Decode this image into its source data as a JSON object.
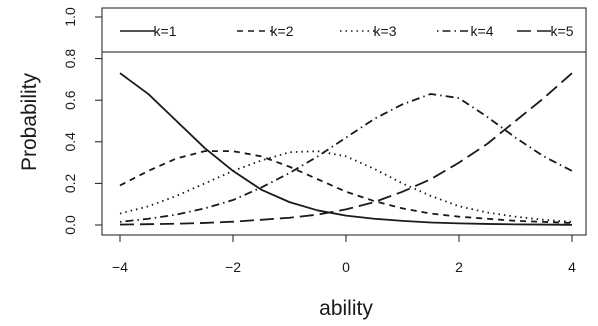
{
  "chart_data": {
    "type": "line",
    "title": "",
    "xlabel": "ability",
    "ylabel": "Probability",
    "xlim": [
      -4,
      4
    ],
    "ylim": [
      0,
      1
    ],
    "x_ticks": [
      -4,
      -2,
      0,
      2,
      4
    ],
    "x_tick_labels": [
      "−4",
      "−2",
      "0",
      "2",
      "4"
    ],
    "y_ticks": [
      0,
      0.2,
      0.4,
      0.6,
      0.8,
      1.0
    ],
    "y_tick_labels": [
      "0.0",
      "0.2",
      "0.4",
      "0.6",
      "0.8",
      "1.0"
    ],
    "grid": false,
    "legend_position": "top",
    "line_color": "#1a1a1a",
    "x": [
      -4,
      -3.5,
      -3,
      -2.5,
      -2,
      -1.5,
      -1,
      -0.5,
      0,
      0.5,
      1,
      1.5,
      2,
      2.5,
      3,
      3.5,
      4
    ],
    "series": [
      {
        "name": "k=1",
        "dash": "solid",
        "values": [
          0.73,
          0.63,
          0.5,
          0.37,
          0.26,
          0.17,
          0.11,
          0.07,
          0.045,
          0.03,
          0.02,
          0.012,
          0.008,
          0.005,
          0.003,
          0.002,
          0.001
        ]
      },
      {
        "name": "k=2",
        "dash": "dashed",
        "values": [
          0.19,
          0.26,
          0.32,
          0.355,
          0.355,
          0.33,
          0.28,
          0.22,
          0.16,
          0.115,
          0.08,
          0.055,
          0.04,
          0.03,
          0.02,
          0.015,
          0.01
        ]
      },
      {
        "name": "k=3",
        "dash": "dotted",
        "values": [
          0.055,
          0.09,
          0.14,
          0.2,
          0.26,
          0.31,
          0.35,
          0.355,
          0.33,
          0.27,
          0.2,
          0.14,
          0.09,
          0.06,
          0.04,
          0.025,
          0.015
        ]
      },
      {
        "name": "k=4",
        "dash": "dotdash",
        "values": [
          0.015,
          0.03,
          0.05,
          0.08,
          0.12,
          0.18,
          0.25,
          0.33,
          0.42,
          0.51,
          0.58,
          0.63,
          0.61,
          0.52,
          0.42,
          0.33,
          0.26
        ]
      },
      {
        "name": "k=5",
        "dash": "longdash",
        "values": [
          0.002,
          0.004,
          0.006,
          0.01,
          0.016,
          0.025,
          0.035,
          0.05,
          0.075,
          0.11,
          0.16,
          0.22,
          0.3,
          0.39,
          0.5,
          0.61,
          0.73
        ]
      }
    ]
  }
}
